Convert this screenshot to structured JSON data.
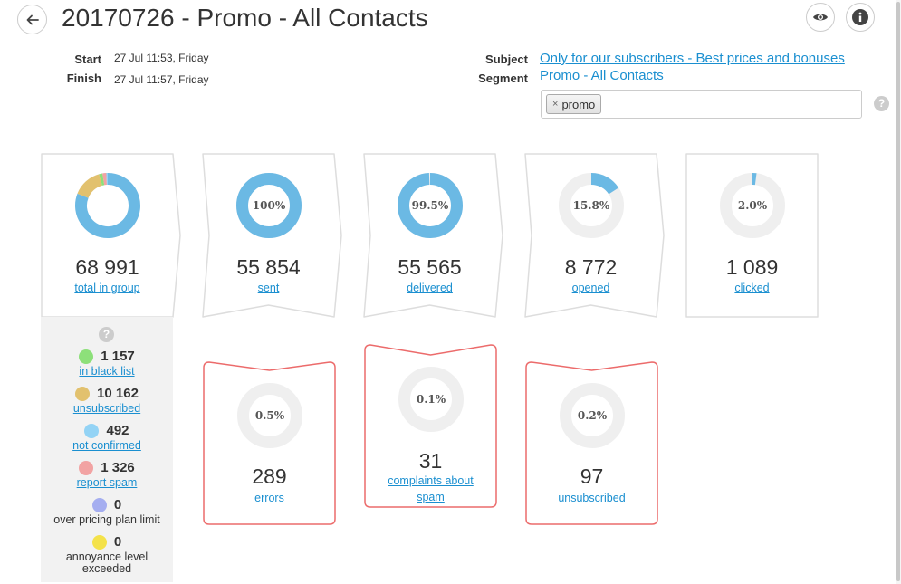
{
  "header": {
    "title": "20170726 - Promo - All Contacts",
    "back_icon": "arrow-left-icon",
    "preview_icon": "eye-icon",
    "info_icon": "info-icon"
  },
  "meta": {
    "start_label": "Start",
    "start_value": "27 Jul 11:53, Friday",
    "finish_label": "Finish",
    "finish_value": "27 Jul 11:57, Friday",
    "subject_label": "Subject",
    "subject_value": "Only for our subscribers - Best prices and bonuses",
    "segment_label": "Segment",
    "segment_value": "Promo - All Contacts",
    "tag_remove": "×",
    "tag": "promo",
    "help": "?"
  },
  "colors": {
    "blue": "#6bb9e4",
    "track": "#efefef",
    "red_border": "#ec6b6b",
    "gray_border": "#dddddd",
    "link": "#1a8fd0"
  },
  "top_cards": [
    {
      "id": "total",
      "value": "68 991",
      "label": "total in group",
      "pct_text": "",
      "pct": null
    },
    {
      "id": "sent",
      "value": "55 854",
      "label": "sent",
      "pct_text": "100%",
      "pct": 100
    },
    {
      "id": "delivered",
      "value": "55 565",
      "label": "delivered",
      "pct_text": "99.5%",
      "pct": 99.5
    },
    {
      "id": "opened",
      "value": "8 772",
      "label": "opened",
      "pct_text": "15.8%",
      "pct": 15.8
    },
    {
      "id": "clicked",
      "value": "1 089",
      "label": "clicked",
      "pct_text": "2.0%",
      "pct": 2.0
    }
  ],
  "total_breakdown": [
    {
      "name": "delivered",
      "value": 55854,
      "color": "#6bb9e4"
    },
    {
      "name": "unsubscribed",
      "value": 10162,
      "color": "#e2c16e"
    },
    {
      "name": "in black list",
      "value": 1157,
      "color": "#8de07a"
    },
    {
      "name": "report spam",
      "value": 1326,
      "color": "#f2a3a3"
    },
    {
      "name": "not confirmed",
      "value": 492,
      "color": "#93d3f5"
    }
  ],
  "bottom_cards": [
    {
      "id": "errors",
      "value": "289",
      "label": "errors",
      "pct_text": "0.5%",
      "pct": 0.5
    },
    {
      "id": "complaints",
      "value": "31",
      "label": "complaints about spam",
      "pct_text": "0.1%",
      "pct": 0.1
    },
    {
      "id": "unsubscribed",
      "value": "97",
      "label": "unsubscribed",
      "pct_text": "0.2%",
      "pct": 0.2
    }
  ],
  "sidebar": {
    "help": "?",
    "items": [
      {
        "value": "1 157",
        "label": "in black list",
        "color": "#8de07a",
        "link": true
      },
      {
        "value": "10 162",
        "label": "unsubscribed",
        "color": "#e2c16e",
        "link": true
      },
      {
        "value": "492",
        "label": "not confirmed",
        "color": "#93d3f5",
        "link": true
      },
      {
        "value": "1 326",
        "label": "report spam",
        "color": "#f2a3a3",
        "link": true
      },
      {
        "value": "0",
        "label": "over pricing plan limit",
        "color": "#a5aef0",
        "link": false
      },
      {
        "value": "0",
        "label": "annoyance level exceeded",
        "color": "#f4e24a",
        "link": false
      }
    ]
  }
}
